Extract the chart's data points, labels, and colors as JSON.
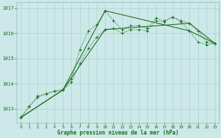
{
  "title": "Graphe pression niveau de la mer (hPa)",
  "bg_color": "#cce8e8",
  "grid_color": "#b0d0d0",
  "line_color": "#1a6e1a",
  "xlim": [
    -0.5,
    23.5
  ],
  "ylim": [
    1012.45,
    1017.25
  ],
  "yticks": [
    1013,
    1014,
    1015,
    1016,
    1017
  ],
  "xticks": [
    0,
    1,
    2,
    3,
    4,
    5,
    6,
    7,
    8,
    9,
    10,
    11,
    12,
    13,
    14,
    15,
    16,
    17,
    18,
    19,
    20,
    21,
    22,
    23
  ],
  "series1_x": [
    0,
    1,
    2,
    3,
    4,
    5,
    6,
    7,
    8,
    9,
    10,
    11,
    12,
    13,
    14,
    15,
    16,
    17,
    18,
    19,
    20,
    21,
    22,
    23
  ],
  "series1_y": [
    1012.65,
    1013.1,
    1013.5,
    1013.6,
    1013.7,
    1013.75,
    1014.2,
    1015.35,
    1016.1,
    1016.35,
    1016.9,
    1016.5,
    1016.15,
    1016.3,
    1016.3,
    1016.2,
    1016.6,
    1016.5,
    1016.65,
    1016.45,
    1016.1,
    1015.65,
    1015.55,
    1015.6
  ],
  "series2_x": [
    0,
    1,
    2,
    3,
    4,
    5,
    6,
    7,
    8,
    9,
    10,
    11,
    12,
    13,
    14,
    15,
    16,
    17,
    18,
    19,
    20,
    21,
    22,
    23
  ],
  "series2_y": [
    1012.65,
    1013.1,
    1013.45,
    1013.6,
    1013.7,
    1013.75,
    1014.05,
    1014.8,
    1015.4,
    1015.85,
    1016.15,
    1016.2,
    1016.0,
    1016.15,
    1016.15,
    1016.1,
    1016.5,
    1016.45,
    1016.65,
    1016.5,
    1016.4,
    1016.1,
    1015.65,
    1015.6
  ],
  "series3_x": [
    0,
    23
  ],
  "series3_y": [
    1012.65,
    1015.6
  ],
  "series4_x": [
    0,
    23
  ],
  "series4_y": [
    1012.65,
    1015.6
  ],
  "solid1_x": [
    0,
    5,
    10,
    20,
    23
  ],
  "solid1_y": [
    1012.65,
    1013.75,
    1016.9,
    1016.1,
    1015.6
  ],
  "solid2_x": [
    0,
    5,
    10,
    20,
    23
  ],
  "solid2_y": [
    1012.65,
    1013.75,
    1016.15,
    1016.4,
    1015.6
  ]
}
